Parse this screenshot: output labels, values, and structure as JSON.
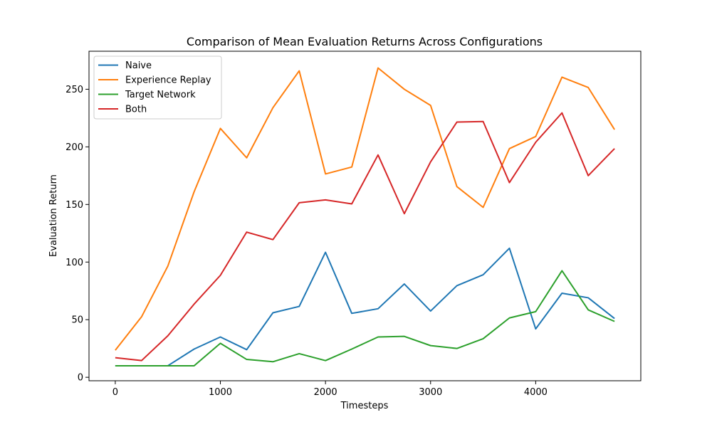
{
  "chart_data": {
    "type": "line",
    "title": "Comparison of Mean Evaluation Returns Across Configurations",
    "xlabel": "Timesteps",
    "ylabel": "Evaluation Return",
    "x": [
      0,
      250,
      500,
      750,
      1000,
      1250,
      1500,
      1750,
      2000,
      2250,
      2500,
      2750,
      3000,
      3250,
      3500,
      3750,
      4000,
      4250,
      4500,
      4750
    ],
    "xlim": [
      -250,
      5000
    ],
    "ylim": [
      -3,
      283
    ],
    "xticks": [
      0,
      1000,
      2000,
      3000,
      4000
    ],
    "yticks": [
      0,
      50,
      100,
      150,
      200,
      250
    ],
    "grid": false,
    "legend_position": "upper-left",
    "series": [
      {
        "name": "Naive",
        "color": "#1f77b4",
        "values": [
          10,
          10,
          10,
          24.5,
          35,
          24,
          56,
          61.5,
          108.5,
          55.5,
          59.5,
          81,
          57.5,
          79.5,
          89,
          112,
          42,
          73,
          69,
          51
        ]
      },
      {
        "name": "Experience Replay",
        "color": "#ff7f0e",
        "values": [
          23.5,
          52.5,
          96.5,
          161,
          216,
          190.5,
          234,
          266,
          176.5,
          182.5,
          268.5,
          250,
          236,
          165.5,
          147.5,
          198.5,
          209,
          260.5,
          251.5,
          215
        ]
      },
      {
        "name": "Target Network",
        "color": "#2ca02c",
        "values": [
          10,
          10,
          10,
          10,
          29.5,
          15.5,
          13.5,
          20.5,
          14.5,
          24.5,
          35,
          35.5,
          27.5,
          25,
          33.5,
          51.5,
          57,
          92.5,
          58.5,
          48.5
        ]
      },
      {
        "name": "Both",
        "color": "#d62728",
        "values": [
          17,
          14.5,
          36,
          63.5,
          88.5,
          126,
          119.5,
          151.5,
          154,
          150.5,
          193,
          142,
          187,
          221.5,
          222,
          169,
          204,
          229.5,
          175,
          198.5
        ]
      }
    ]
  }
}
